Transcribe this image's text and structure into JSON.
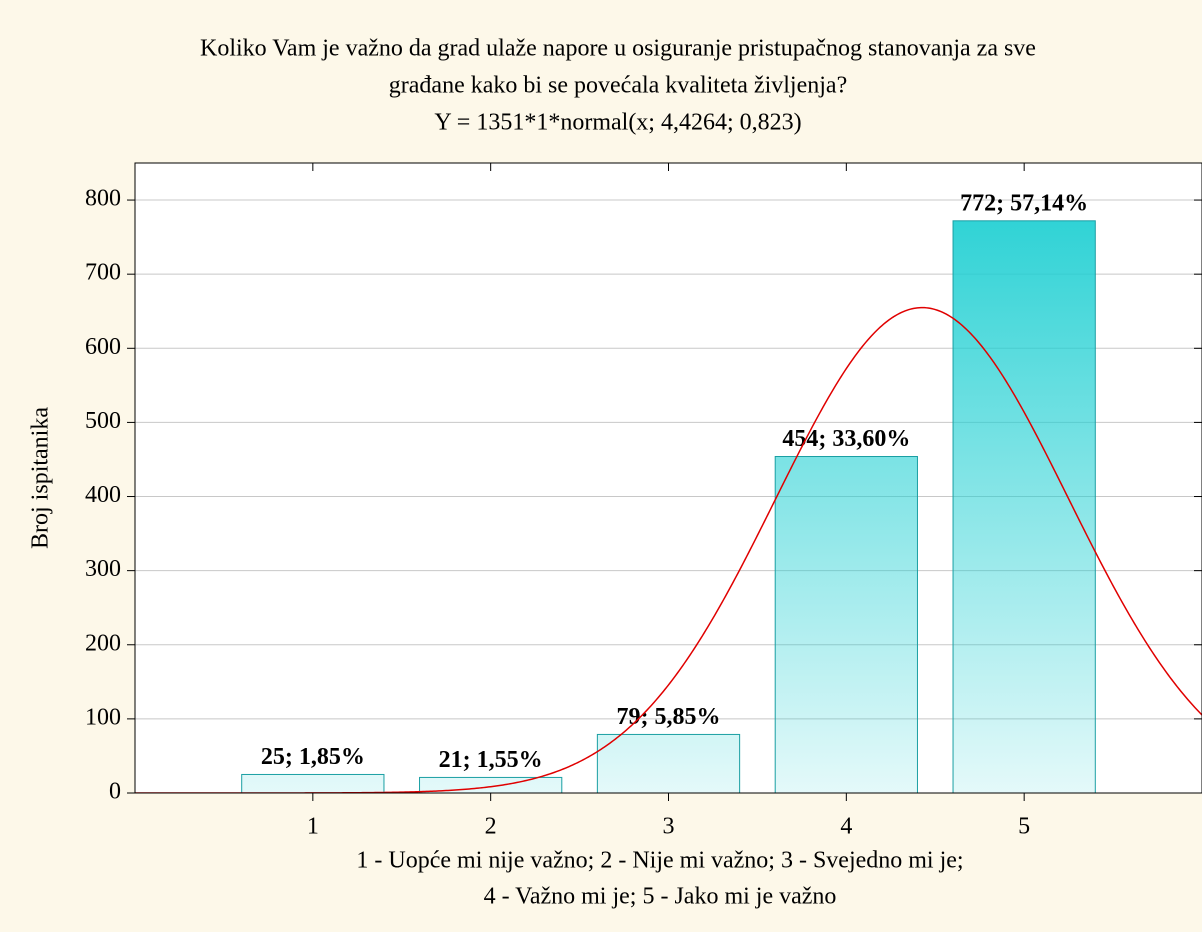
{
  "chart_data": {
    "type": "bar",
    "title": [
      "Koliko Vam je važno da grad ulaže napore u osiguranje pristupačnog stanovanja za sve",
      "građane kako bi se povećala kvaliteta življenja?"
    ],
    "subtitle": "Y = 1351*1*normal(x; 4,4264; 0,823)",
    "ylabel": "Broj ispitanika",
    "xlabel": [
      "1 - Uopće mi nije važno; 2 - Nije mi važno; 3 - Svejedno mi je;",
      "4 - Važno mi je; 5 - Jako mi je važno"
    ],
    "x": [
      1,
      2,
      3,
      4,
      5
    ],
    "values": [
      25,
      21,
      79,
      454,
      772
    ],
    "value_labels": [
      "25; 1,85%",
      "21; 1,55%",
      "79; 5,85%",
      "454; 33,60%",
      "772; 57,14%"
    ],
    "color": "#1ecfd2",
    "xlim": [
      0,
      6
    ],
    "xticks": [
      1,
      2,
      3,
      4,
      5
    ],
    "ylim": [
      0,
      850
    ],
    "yticks": [
      0,
      100,
      200,
      300,
      400,
      500,
      600,
      700,
      800
    ],
    "grid": true,
    "curve": {
      "n": 1351,
      "width": 1,
      "mean": 4.4264,
      "sd": 0.823,
      "color": "#e00000"
    }
  }
}
